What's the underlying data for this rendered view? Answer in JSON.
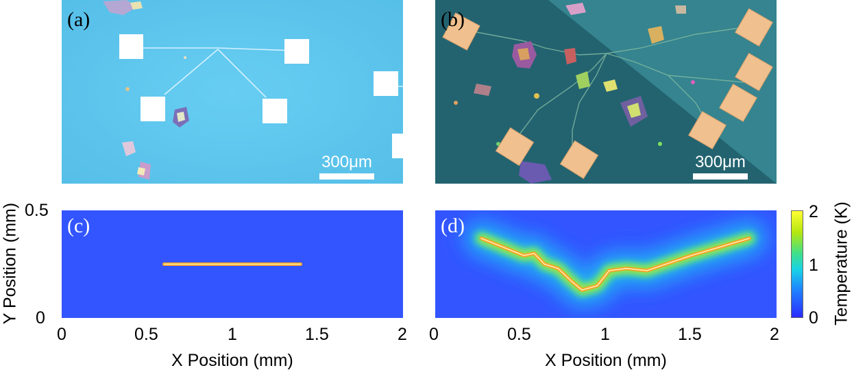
{
  "panels": {
    "a": {
      "label": "(a)",
      "scale_label": "300μm"
    },
    "b": {
      "label": "(b)",
      "scale_label": "300μm"
    },
    "c": {
      "label": "(c)"
    },
    "d": {
      "label": "(d)"
    }
  },
  "chart_data": [
    {
      "type": "heatmap",
      "panel": "(c)",
      "xlabel": "X Position (mm)",
      "ylabel": "Y Position (mm)",
      "xlim": [
        0,
        2
      ],
      "ylim": [
        0,
        0.5
      ],
      "xticks": [
        "0",
        "0.5",
        "1",
        "1.5",
        "2"
      ],
      "yticks": [
        "0",
        "0.5"
      ],
      "heater_path_mm": [
        [
          0.6,
          0.25
        ],
        [
          1.4,
          0.25
        ]
      ]
    },
    {
      "type": "heatmap",
      "panel": "(d)",
      "xlabel": "X Position (mm)",
      "xlim": [
        0,
        2
      ],
      "ylim": [
        0,
        0.5
      ],
      "xticks": [
        "0",
        "0.5",
        "1",
        "1.5",
        "2"
      ],
      "heater_path_mm": [
        [
          0.27,
          0.37
        ],
        [
          0.52,
          0.29
        ],
        [
          0.58,
          0.3
        ],
        [
          0.64,
          0.25
        ],
        [
          0.72,
          0.23
        ],
        [
          0.8,
          0.17
        ],
        [
          0.86,
          0.13
        ],
        [
          0.95,
          0.15
        ],
        [
          1.02,
          0.22
        ],
        [
          1.12,
          0.23
        ],
        [
          1.24,
          0.22
        ],
        [
          1.5,
          0.29
        ],
        [
          1.84,
          0.37
        ]
      ]
    }
  ],
  "colorbar": {
    "label": "Temperature (K)",
    "range": [
      0,
      2
    ],
    "ticks": [
      "0",
      "1",
      "2"
    ],
    "colors": [
      "#2b2bff",
      "#1f80ff",
      "#18d2e6",
      "#3fe08a",
      "#b6e60f",
      "#ffff33"
    ]
  }
}
